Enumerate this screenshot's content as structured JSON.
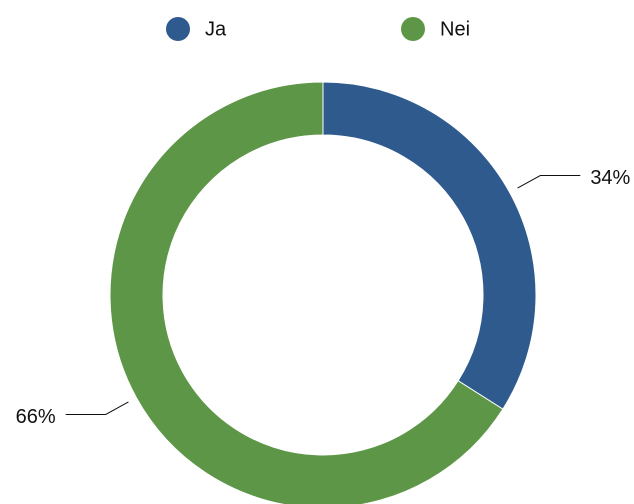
{
  "chart_data": {
    "type": "pie",
    "donut": true,
    "categories": [
      "Ja",
      "Nei"
    ],
    "values": [
      34,
      66
    ],
    "value_labels": [
      "34%",
      "66%"
    ],
    "colors": [
      "#2e5a8e",
      "#5e9648"
    ],
    "legend": "top"
  }
}
